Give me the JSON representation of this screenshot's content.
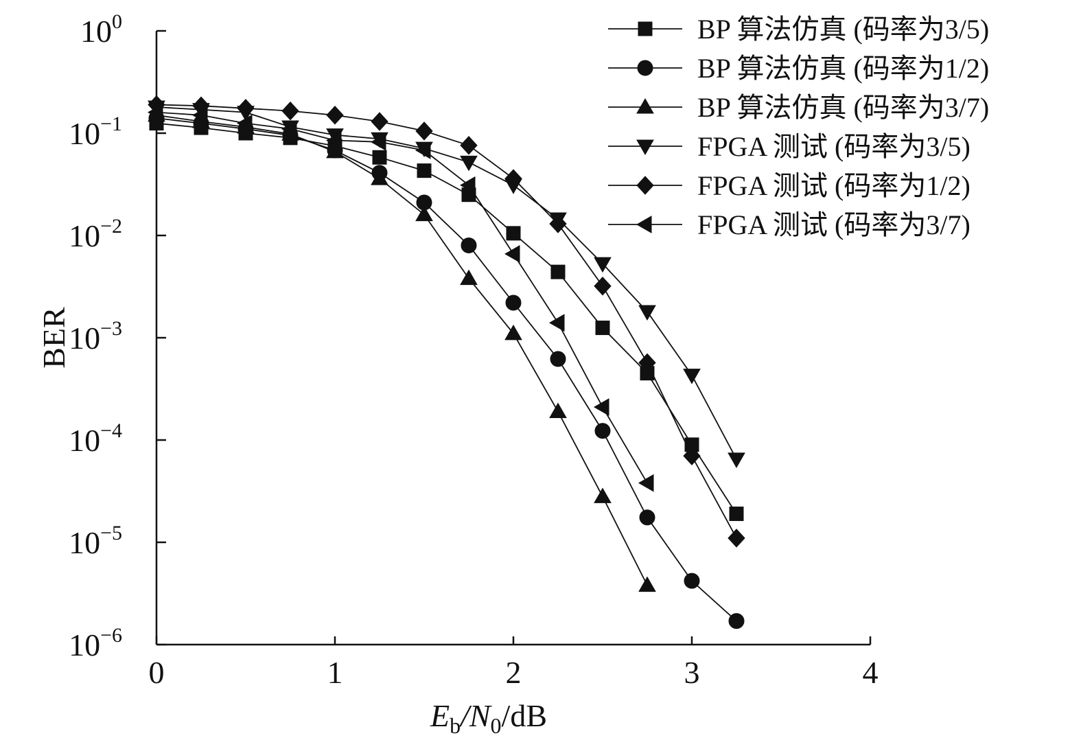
{
  "chart_data": {
    "type": "line",
    "xlabel": {
      "base": "E",
      "sub1": "b",
      "mid": "/N",
      "sub2": "0",
      "tail": "/dB"
    },
    "ylabel": "BER",
    "xlim": [
      0,
      4
    ],
    "ylim": [
      1e-06,
      1
    ],
    "yscale": "log",
    "xticks": [
      0,
      1,
      2,
      3,
      4
    ],
    "yticks": [
      {
        "base": "10",
        "exp": "0",
        "value": 1
      },
      {
        "base": "10",
        "exp": "−1",
        "value": 0.1
      },
      {
        "base": "10",
        "exp": "−2",
        "value": 0.01
      },
      {
        "base": "10",
        "exp": "−3",
        "value": 0.001
      },
      {
        "base": "10",
        "exp": "−4",
        "value": 0.0001
      },
      {
        "base": "10",
        "exp": "−5",
        "value": 1e-05
      },
      {
        "base": "10",
        "exp": "−6",
        "value": 1e-06
      }
    ],
    "grid": false,
    "legend_position": "top-right",
    "series": [
      {
        "name": "BP 算法仿真 (码率为3/5)",
        "marker": "square",
        "x": [
          0,
          0.25,
          0.5,
          0.75,
          1,
          1.25,
          1.5,
          1.75,
          2,
          2.25,
          2.5,
          2.75,
          3,
          3.25
        ],
        "y": [
          0.125,
          0.113,
          0.1,
          0.09,
          0.075,
          0.058,
          0.043,
          0.025,
          0.0105,
          0.0044,
          0.00125,
          0.00045,
          9e-05,
          1.9e-05
        ]
      },
      {
        "name": "BP 算法仿真 (码率为1/2)",
        "marker": "circle",
        "x": [
          0,
          0.25,
          0.5,
          0.75,
          1,
          1.25,
          1.5,
          1.75,
          2,
          2.25,
          2.5,
          2.75,
          3,
          3.25
        ],
        "y": [
          0.14,
          0.125,
          0.11,
          0.095,
          0.068,
          0.041,
          0.021,
          0.008,
          0.0022,
          0.00062,
          0.000123,
          1.75e-05,
          4.2e-06,
          1.7e-06
        ]
      },
      {
        "name": "BP 算法仿真 (码率为3/7)",
        "marker": "triangle-up",
        "x": [
          0,
          0.25,
          0.5,
          0.75,
          1,
          1.25,
          1.5,
          1.75,
          2,
          2.25,
          2.5,
          2.75
        ],
        "y": [
          0.15,
          0.13,
          0.115,
          0.098,
          0.066,
          0.036,
          0.016,
          0.0038,
          0.0011,
          0.00019,
          2.8e-05,
          3.8e-06
        ]
      },
      {
        "name": "FPGA 测试 (码率为3/5)",
        "marker": "triangle-down",
        "x": [
          0,
          0.25,
          0.5,
          0.75,
          1,
          1.25,
          1.5,
          1.75,
          2,
          2.25,
          2.5,
          2.75,
          3,
          3.25
        ],
        "y": [
          0.18,
          0.17,
          0.16,
          0.115,
          0.096,
          0.088,
          0.071,
          0.052,
          0.031,
          0.0145,
          0.0053,
          0.0018,
          0.00043,
          6.5e-05
        ]
      },
      {
        "name": "FPGA 测试 (码率为1/2)",
        "marker": "diamond",
        "x": [
          0,
          0.25,
          0.5,
          0.75,
          1,
          1.25,
          1.5,
          1.75,
          2,
          2.25,
          2.5,
          2.75,
          3,
          3.25
        ],
        "y": [
          0.19,
          0.185,
          0.175,
          0.165,
          0.15,
          0.13,
          0.105,
          0.076,
          0.036,
          0.013,
          0.0032,
          0.00057,
          7e-05,
          1.1e-05
        ]
      },
      {
        "name": "FPGA 测试 (码率为3/7)",
        "marker": "triangle-left",
        "x": [
          0,
          0.25,
          0.5,
          0.75,
          1,
          1.25,
          1.5,
          1.75,
          2,
          2.25,
          2.5,
          2.75
        ],
        "y": [
          0.16,
          0.15,
          0.125,
          0.11,
          0.085,
          0.082,
          0.068,
          0.031,
          0.0066,
          0.0014,
          0.00021,
          3.8e-05
        ]
      }
    ]
  }
}
